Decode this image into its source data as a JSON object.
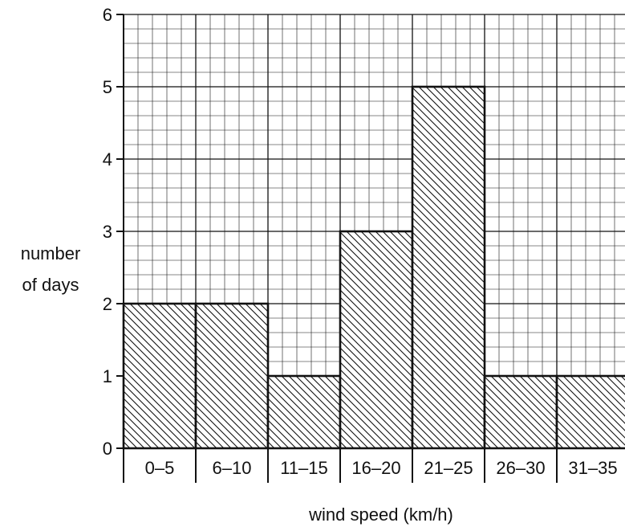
{
  "chart_data": {
    "type": "bar",
    "categories": [
      "0–5",
      "6–10",
      "11–15",
      "16–20",
      "21–25",
      "26–30",
      "31–35"
    ],
    "values": [
      2,
      2,
      1,
      3,
      5,
      1,
      1
    ],
    "title": "",
    "xlabel": "wind speed (km/h)",
    "ylabel_lines": [
      "number",
      "of days"
    ],
    "ylim": [
      0,
      6
    ],
    "yticks": [
      "0",
      "1",
      "2",
      "3",
      "4",
      "5",
      "6"
    ],
    "grid": true,
    "bar_fill": "cross-hatched",
    "colors": {
      "ink": "#111111",
      "grid": "#111111",
      "background": "#ffffff"
    }
  }
}
